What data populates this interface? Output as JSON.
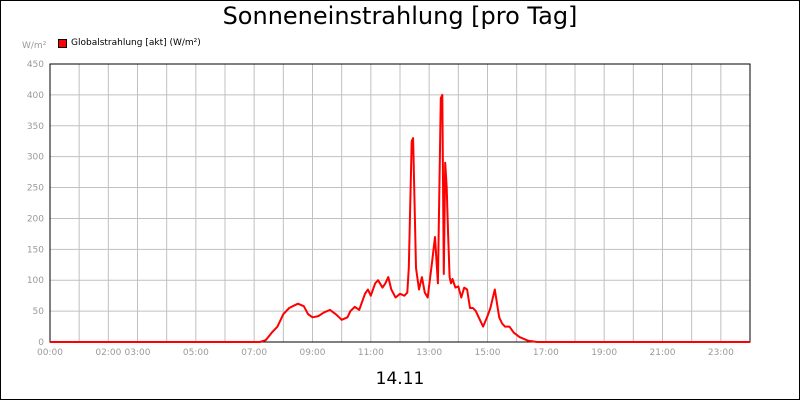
{
  "chart_data": {
    "type": "line",
    "title": "Sonneneinstrahlung [pro Tag]",
    "unit_label": "W/m²",
    "date_label": "14.11",
    "colors": {
      "series": "#ff0000",
      "grid": "#c0c0c0",
      "axis": "#000000"
    },
    "grid": true,
    "legend": "top-left",
    "ylim": [
      0,
      450
    ],
    "y_ticks": [
      "0",
      "50",
      "100",
      "150",
      "200",
      "250",
      "300",
      "350",
      "400",
      "450"
    ],
    "xlim": [
      0,
      24
    ],
    "x_ticks": [
      {
        "label": "00:00",
        "value": 0
      },
      {
        "label": "02:00",
        "value": 2
      },
      {
        "label": "03:00",
        "value": 3
      },
      {
        "label": "05:00",
        "value": 5
      },
      {
        "label": "07:00",
        "value": 7
      },
      {
        "label": "09:00",
        "value": 9
      },
      {
        "label": "11:00",
        "value": 11
      },
      {
        "label": "13:00",
        "value": 13
      },
      {
        "label": "15:00",
        "value": 15
      },
      {
        "label": "17:00",
        "value": 17
      },
      {
        "label": "19:00",
        "value": 19
      },
      {
        "label": "21:00",
        "value": 21
      },
      {
        "label": "23:00",
        "value": 23
      }
    ],
    "series": [
      {
        "name": "Globalstrahlung [akt] (W/m²)",
        "x": [
          0,
          7.2,
          7.4,
          7.6,
          7.8,
          8.0,
          8.2,
          8.5,
          8.7,
          8.85,
          9.0,
          9.2,
          9.4,
          9.6,
          9.8,
          10.0,
          10.2,
          10.3,
          10.45,
          10.6,
          10.8,
          10.9,
          11.0,
          11.15,
          11.25,
          11.4,
          11.5,
          11.6,
          11.7,
          11.85,
          12.0,
          12.15,
          12.25,
          12.3,
          12.4,
          12.45,
          12.55,
          12.65,
          12.75,
          12.85,
          12.95,
          13.1,
          13.2,
          13.3,
          13.4,
          13.45,
          13.5,
          13.55,
          13.6,
          13.65,
          13.7,
          13.75,
          13.8,
          13.9,
          14.0,
          14.1,
          14.2,
          14.3,
          14.4,
          14.5,
          14.6,
          14.7,
          14.85,
          15.0,
          15.1,
          15.25,
          15.4,
          15.5,
          15.6,
          15.75,
          15.9,
          16.1,
          16.4,
          16.7,
          17.0,
          24
        ],
        "values": [
          0,
          0,
          3,
          15,
          25,
          45,
          55,
          62,
          58,
          45,
          40,
          42,
          48,
          52,
          45,
          36,
          40,
          50,
          57,
          52,
          78,
          85,
          75,
          95,
          100,
          88,
          95,
          105,
          85,
          72,
          78,
          75,
          80,
          120,
          325,
          330,
          120,
          85,
          105,
          80,
          72,
          130,
          170,
          95,
          395,
          400,
          110,
          290,
          250,
          175,
          105,
          95,
          102,
          88,
          90,
          72,
          88,
          85,
          55,
          55,
          50,
          40,
          25,
          42,
          55,
          85,
          40,
          30,
          25,
          25,
          15,
          8,
          2,
          0,
          0,
          0
        ]
      }
    ]
  }
}
